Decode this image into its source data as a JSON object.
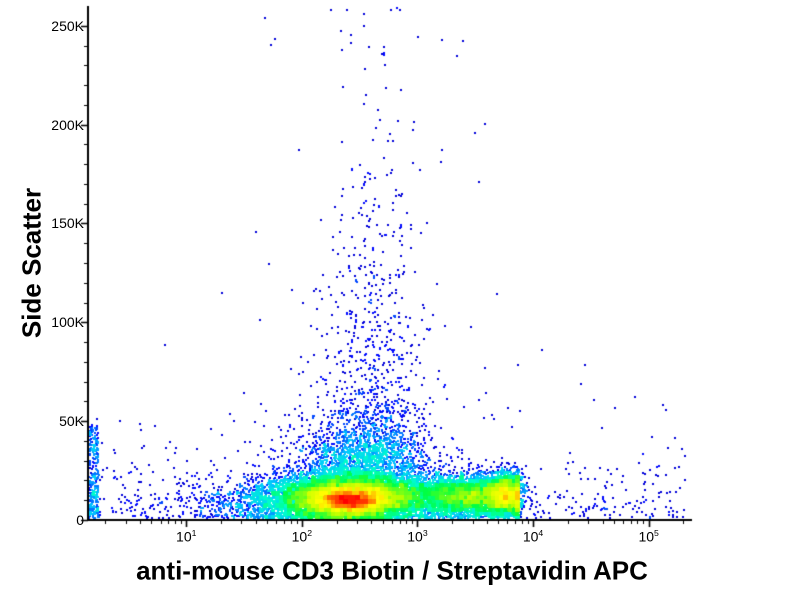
{
  "chart_data": {
    "type": "scatter",
    "subtype": "flow-cytometry-density-dot-plot",
    "title": "",
    "xlabel": "anti-mouse CD3 Biotin / Streptavidin APC",
    "ylabel": "Side Scatter",
    "x_scale": "log10",
    "x_log_range": [
      0.15,
      5.375
    ],
    "y_range": [
      0,
      260000
    ],
    "grid": false,
    "legend": "none",
    "axis_color": "#000000",
    "background_color": "#ffffff",
    "x_ticks": [
      {
        "log10": 1,
        "base": "10",
        "exp": "1"
      },
      {
        "log10": 2,
        "base": "10",
        "exp": "2"
      },
      {
        "log10": 3,
        "base": "10",
        "exp": "3"
      },
      {
        "log10": 4,
        "base": "10",
        "exp": "4"
      },
      {
        "log10": 5,
        "base": "10",
        "exp": "5"
      }
    ],
    "y_ticks": [
      {
        "value": 0,
        "label": "0"
      },
      {
        "value": 50000,
        "label": "50K"
      },
      {
        "value": 100000,
        "label": "100K"
      },
      {
        "value": 150000,
        "label": "150K"
      },
      {
        "value": 200000,
        "label": "200K"
      },
      {
        "value": 250000,
        "label": "250K"
      }
    ],
    "y_minor_tick_step": 10000,
    "colormap": [
      {
        "t": 0.0,
        "color": "#00008f"
      },
      {
        "t": 0.2,
        "color": "#0000ff"
      },
      {
        "t": 0.38,
        "color": "#00c8ff"
      },
      {
        "t": 0.5,
        "color": "#00ffc8"
      },
      {
        "t": 0.6,
        "color": "#00ff40"
      },
      {
        "t": 0.72,
        "color": "#b4ff00"
      },
      {
        "t": 0.82,
        "color": "#ffff00"
      },
      {
        "t": 0.91,
        "color": "#ff8000"
      },
      {
        "t": 1.0,
        "color": "#ff0000"
      }
    ],
    "seed": 42,
    "populations": [
      {
        "name": "cd3neg-main",
        "n": 12000,
        "x_mean": 2.42,
        "x_sd": 0.32,
        "y_mean": 11000,
        "y_sd": 5500
      },
      {
        "name": "cd3neg-core",
        "n": 3500,
        "x_mean": 2.42,
        "x_sd": 0.13,
        "y_mean": 9800,
        "y_sd": 2600
      },
      {
        "name": "cd3pos-streak",
        "n": 5000,
        "x_mean": 3.5,
        "x_sd": 0.28,
        "x_min": 2.85,
        "x_max": 3.88,
        "y_mean": 12000,
        "y_sd": 5200
      },
      {
        "name": "cd3pos-cap",
        "n": 1800,
        "x_mean": 3.76,
        "x_sd": 0.07,
        "y_mean": 13000,
        "y_sd": 5000
      },
      {
        "name": "mid-halo",
        "n": 2600,
        "x_mean": 2.52,
        "x_sd": 0.3,
        "y_mean": 24000,
        "y_sd": 13000
      },
      {
        "name": "debris-spray",
        "n": 900,
        "x_mean": 2.62,
        "x_sd": 0.22,
        "y_dist": "exp",
        "y_base": 30000,
        "y_exp_mean": 50000
      },
      {
        "name": "low-left",
        "n": 900,
        "x_mean": 1.8,
        "x_sd": 0.45,
        "x_max": 2.3,
        "y_mean": 9000,
        "y_sd": 7000
      },
      {
        "name": "left-edge-pinned",
        "n": 280,
        "x_dist": "uniform",
        "x_min": 0.16,
        "x_max": 0.24,
        "y_dist": "uniform",
        "y_min": 500,
        "y_max": 48000
      },
      {
        "name": "background-low",
        "n": 650,
        "x_dist": "uniform",
        "x_min": 0.2,
        "x_max": 5.33,
        "y_dist": "exp",
        "y_base": 1000,
        "y_exp_mean": 15000
      },
      {
        "name": "sparse-high",
        "n": 50,
        "x_dist": "uniform",
        "x_min": 1.5,
        "x_max": 3.7,
        "y_dist": "uniform",
        "y_min": 30000,
        "y_max": 255000
      }
    ]
  }
}
